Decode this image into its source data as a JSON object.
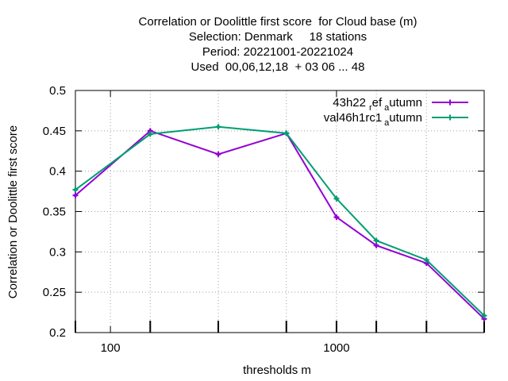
{
  "chart_data": {
    "type": "line",
    "title_lines": [
      "Correlation or Doolittle first score  for Cloud base (m)",
      "Selection: Denmark     18 stations",
      "Period: 20221001-20221024",
      "Used  00,06,12,18  + 03 06 ... 48"
    ],
    "xlabel": "thresholds m",
    "ylabel": "Correlation or Doolittle first score",
    "x_scale": "log",
    "xlim": [
      70,
      4500
    ],
    "ylim": [
      0.2,
      0.5
    ],
    "x_tick_labels": [
      {
        "value": 100,
        "label": "100"
      },
      {
        "value": 1000,
        "label": "1000"
      }
    ],
    "x_minor_ticks": [
      150,
      300,
      600,
      1500,
      2500
    ],
    "y_ticks": [
      {
        "value": 0.2,
        "label": "0.2"
      },
      {
        "value": 0.25,
        "label": "0.25"
      },
      {
        "value": 0.3,
        "label": "0.3"
      },
      {
        "value": 0.35,
        "label": "0.35"
      },
      {
        "value": 0.4,
        "label": "0.4"
      },
      {
        "value": 0.45,
        "label": "0.45"
      },
      {
        "value": 0.5,
        "label": "0.5"
      }
    ],
    "grid": true,
    "legend_position": "top-right",
    "x": [
      70,
      150,
      300,
      600,
      1000,
      1500,
      2500,
      4500
    ],
    "series": [
      {
        "name": "43h22_ref_autumn",
        "legend_main": "43h22",
        "legend_sub1": "ref",
        "legend_sub2": "utumn",
        "legend_sub_char": "a",
        "legend_sub_char1": "r",
        "color": "#9400d3",
        "values": [
          0.37,
          0.45,
          0.421,
          0.447,
          0.343,
          0.308,
          0.286,
          0.217
        ]
      },
      {
        "name": "val46h1rc1_autumn",
        "legend_main": "val46h1rc1",
        "legend_sub1": "",
        "legend_sub2": "utumn",
        "legend_sub_char": "a",
        "legend_sub_char1": "",
        "color": "#009e73",
        "values": [
          0.377,
          0.446,
          0.455,
          0.447,
          0.366,
          0.314,
          0.29,
          0.221
        ]
      }
    ]
  }
}
